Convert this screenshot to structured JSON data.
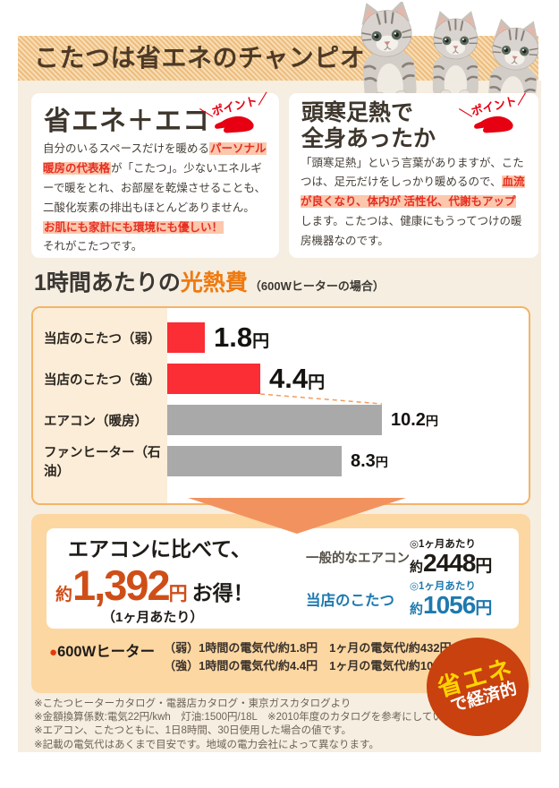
{
  "banner": {
    "title": "こたつは省エネのチャンピオン！"
  },
  "cards": {
    "left": {
      "title": "省エネ＋エコ",
      "point": "＼ポイント／",
      "seg1": "自分のいるスペースだけを暖める",
      "hl1": "パーソナル暖房の代表格",
      "seg2": "が「こたつ」。少ないエネルギーで暖をとれ、お部屋を乾燥させることも、二酸化炭素の排出もほとんどありません。",
      "hl2": "お肌にも家計にも環境にも優しい！",
      "seg3": "それがこたつです。"
    },
    "right": {
      "title1": "頭寒足熱で",
      "title2": "全身あったか",
      "point": "＼ポイント／",
      "seg1": "「頭寒足熱」という言葉がありますが、こたつは、足元だけをしっかり暖めるので、",
      "hl1": "血流が良くなり、体内が 活性化、代謝もアップ",
      "seg2": "します。こたつは、健康にもうってつけの暖房機器なのです。"
    }
  },
  "chart_header": {
    "prefix": "1時間あたりの",
    "highlight": "光熱費",
    "note": "（600Wヒーターの場合）"
  },
  "chart_data": {
    "type": "bar",
    "orientation": "horizontal",
    "title": "1時間あたりの光熱費（600Wヒーターの場合）",
    "categories": [
      "当店のこたつ（弱）",
      "当店のこたつ（強）",
      "エアコン（暖房）",
      "ファンヒーター（石油）"
    ],
    "values": [
      1.8,
      4.4,
      10.2,
      8.3
    ],
    "value_labels": [
      "1.8",
      "4.4",
      "10.2",
      "8.3"
    ],
    "unit": "円",
    "bar_colors": [
      "#fb2d35",
      "#fb2d35",
      "#a9a9a9",
      "#a9a9a9"
    ],
    "emphasis": [
      true,
      true,
      false,
      false
    ],
    "xlim": [
      0,
      11
    ],
    "grid": false,
    "legend": "none"
  },
  "savings": {
    "headline": "エアコンに比べて、",
    "approx": "約",
    "amount": "1,392",
    "unit": "円",
    "suffix": "お得！",
    "per_month": "（1ヶ月あたり）",
    "rows": [
      {
        "label": "一般的なエアコン",
        "per": "◎1ヶ月あたり",
        "approx": "約",
        "value": "2448",
        "unit": "円"
      },
      {
        "label": "当店のこたつ",
        "per": "◎1ヶ月あたり",
        "approx": "約",
        "value": "1056",
        "unit": "円"
      }
    ],
    "heater": {
      "bullet": "●",
      "name": "600Wヒーター",
      "lines": [
        "（弱）1時間の電気代/約1.8円　1ヶ月の電気代/約432円",
        "（強）1時間の電気代/約4.4円　1ヶ月の電気代/約1056円"
      ]
    }
  },
  "badge": {
    "line1": "省エネ",
    "line2": "で経済的"
  },
  "footnotes": [
    "※こたつヒーターカタログ・電器店カタログ・東京ガスカタログより",
    "※金額換算係数:電気22円/kwh　灯油:1500円/18L　※2010年度のカタログを参考にしています。",
    "※エアコン、こたつともに、1日8時間、30日使用した場合の値です。",
    "※記載の電気代はあくまで目安です。地域の電力会社によって異なります。"
  ],
  "colors": {
    "accent_orange": "#ee7a10",
    "bar_red": "#fb2d35",
    "bar_gray": "#a9a9a9",
    "highlight_red": "#e62e22",
    "highlight_bg": "#fbc7ad",
    "savings_red": "#cf4e18",
    "kotatsu_blue": "#1e79ae",
    "badge_red": "#c8410e",
    "badge_yellow": "#ffd400",
    "point_red": "#e60012"
  }
}
